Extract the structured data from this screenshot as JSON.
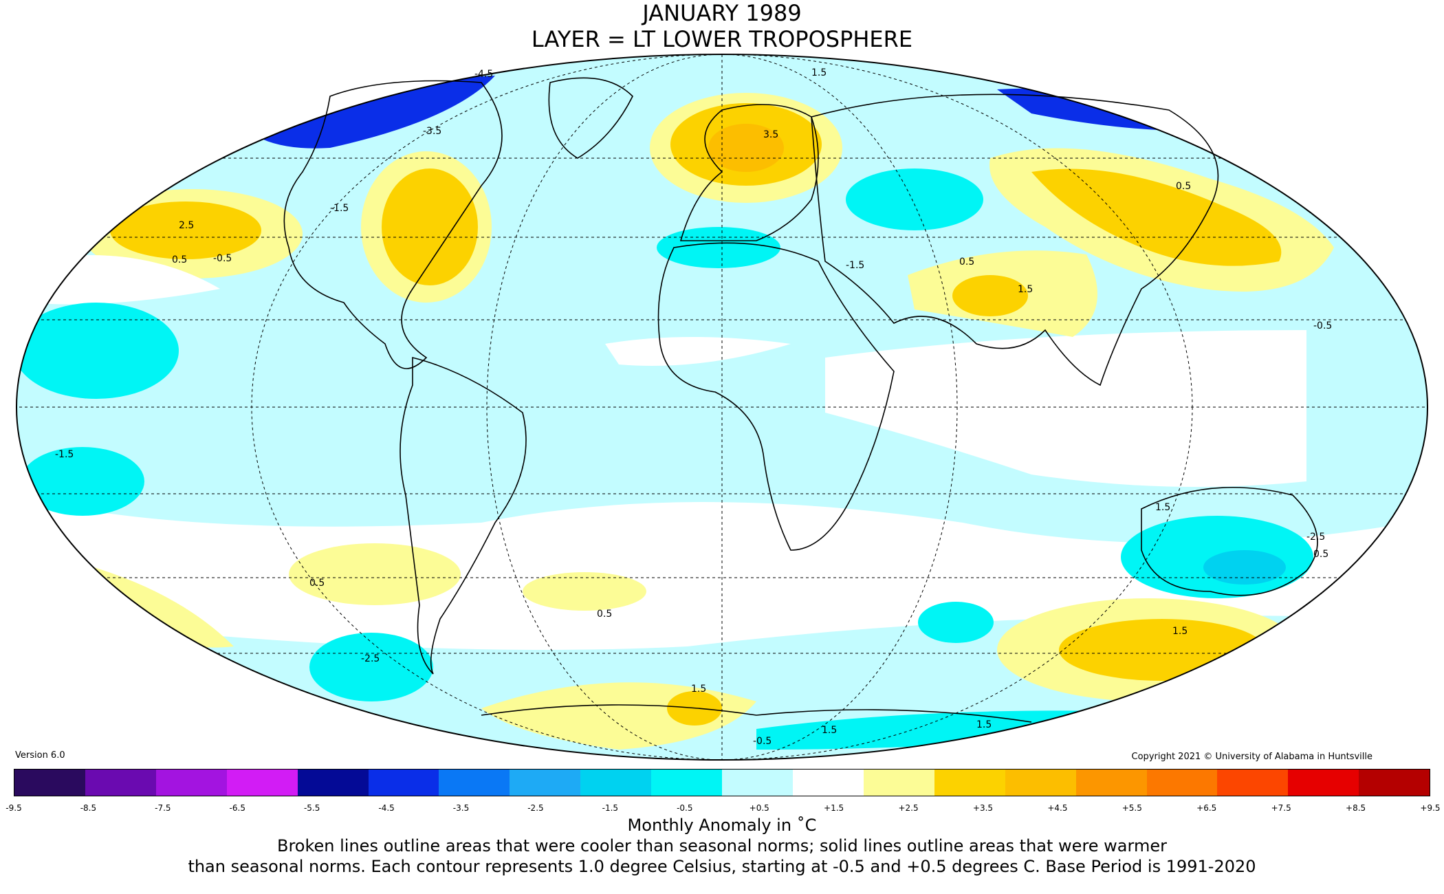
{
  "title": "JANUARY 1989",
  "subtitle": "LAYER = LT LOWER TROPOSPHERE",
  "version": "Version 6.0",
  "copyright": "Copyright 2021 © University of Alabama in Huntsville",
  "colorbar": {
    "unit_label": "Monthly Anomaly in °C",
    "ticks": [
      "-9.5",
      "-8.5",
      "-7.5",
      "-6.5",
      "-5.5",
      "-4.5",
      "-3.5",
      "-2.5",
      "-1.5",
      "-0.5",
      "+0.5",
      "+1.5",
      "+2.5",
      "+3.5",
      "+4.5",
      "+5.5",
      "+6.5",
      "+7.5",
      "+8.5",
      "+9.5"
    ],
    "colors": [
      "#2a0a5e",
      "#6a0ab0",
      "#a314e0",
      "#d21cf5",
      "#040a96",
      "#0a2ee8",
      "#0a78f5",
      "#1eaaf5",
      "#00d2f0",
      "#00f5f5",
      "#c3fcff",
      "#ffffff",
      "#fcfc96",
      "#fcd200",
      "#fcbe00",
      "#fc9600",
      "#fc7800",
      "#fc4600",
      "#e60000",
      "#b40000"
    ]
  },
  "caption": {
    "title": "Monthly Anomaly in ˚C",
    "line1": "Broken lines outline areas that were cooler than seasonal norms; solid lines outline areas that were warmer",
    "line2": "than seasonal norms. Each contour represents 1.0 degree Celsius, starting at -0.5 and +0.5 degrees C. Base Period is 1991-2020"
  },
  "map": {
    "projection": "mollweide",
    "contour_labels": [
      "-4.5",
      "-3.5",
      "-2.5",
      "-1.5",
      "-0.5",
      "0.5",
      "1.5",
      "2.5",
      "3.5"
    ]
  }
}
